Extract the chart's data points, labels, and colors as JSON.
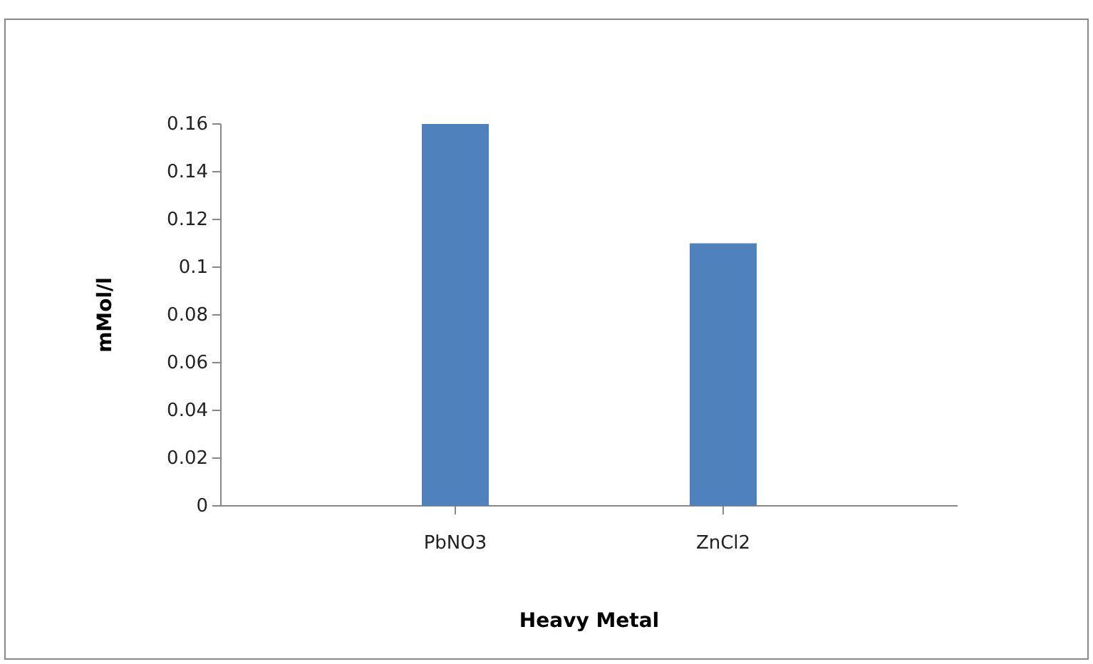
{
  "chart_data": {
    "type": "bar",
    "xlabel": "Heavy Metal",
    "ylabel": "mMol/l",
    "categories": [
      "PbNO3",
      "ZnCl2"
    ],
    "values": [
      0.16,
      0.11
    ],
    "color": "#4f81bd",
    "ylim": [
      0,
      0.16
    ],
    "yticks": [
      0,
      0.02,
      0.04,
      0.06,
      0.08,
      0.1,
      0.12,
      0.14,
      0.16
    ],
    "grid": false
  }
}
